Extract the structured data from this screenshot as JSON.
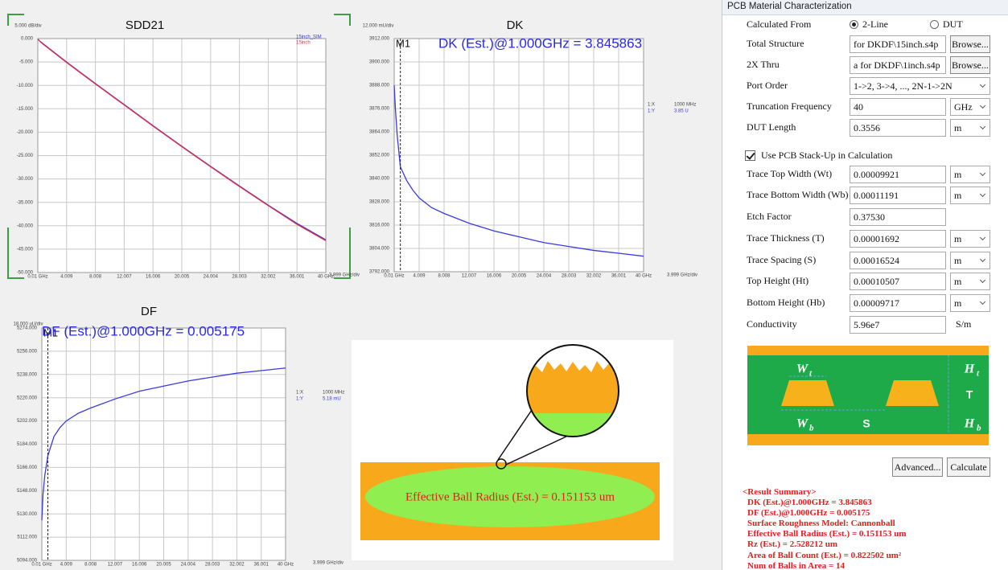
{
  "chart_data": [
    {
      "type": "line",
      "title": "SDD21",
      "y_unit": "5.000 dB/div",
      "x_unit": "3.999 GHz/div",
      "x": [
        0.01,
        0.2,
        0.5,
        1,
        2,
        3,
        4.009,
        6,
        8.008,
        12.007,
        16.006,
        20.005,
        24.004,
        28.003,
        32.002,
        36.001,
        40
      ],
      "xlim": [
        0.01,
        40
      ],
      "xticks": [
        {
          "value": 0.01,
          "label": "0.01 GHz"
        },
        4.009,
        8.008,
        12.007,
        16.006,
        20.005,
        24.004,
        28.003,
        32.002,
        36.001,
        {
          "value": 40,
          "label": "40 GHz"
        }
      ],
      "ylim": [
        -50,
        0
      ],
      "yticks": [
        {
          "value": 0,
          "label": "0.000"
        },
        {
          "value": -5,
          "label": "-5.000"
        },
        {
          "value": -10,
          "label": "-10.000"
        },
        {
          "value": -15,
          "label": "-15.000"
        },
        {
          "value": -20,
          "label": "-20.000"
        },
        {
          "value": -25,
          "label": "-25.000"
        },
        {
          "value": -30,
          "label": "-30.000"
        },
        {
          "value": -35,
          "label": "-35.000"
        },
        {
          "value": -40,
          "label": "-40.000"
        },
        {
          "value": -45,
          "label": "-45.000"
        },
        {
          "value": -50,
          "label": "-50.000"
        }
      ],
      "grid": true,
      "legend": "upper right",
      "series": [
        {
          "name": "15inch_SIM",
          "color": "#3a3ad8",
          "values": [
            -0.1,
            -0.4,
            -0.8,
            -1.4,
            -2.6,
            -3.8,
            -5.0,
            -7.3,
            -9.6,
            -14.1,
            -18.6,
            -23.0,
            -27.3,
            -31.5,
            -35.6,
            -39.5,
            -43.0
          ]
        },
        {
          "name": "15inch",
          "color": "#e0304a",
          "values": [
            -0.1,
            -0.4,
            -0.9,
            -1.5,
            -2.7,
            -3.9,
            -5.1,
            -7.4,
            -9.7,
            -14.2,
            -18.7,
            -23.1,
            -27.4,
            -31.6,
            -35.7,
            -39.7,
            -43.2
          ]
        }
      ]
    },
    {
      "type": "line",
      "title": "DK",
      "y_unit": "12.000 mU/div",
      "x_unit": "3.999 GHz/div",
      "x": [
        0.01,
        0.2,
        0.5,
        1,
        2,
        3,
        4.009,
        6,
        8.008,
        12.007,
        16.006,
        20.005,
        24.004,
        28.003,
        32.002,
        36.001,
        40
      ],
      "xlim": [
        0.01,
        40
      ],
      "xticks": [
        {
          "value": 0.01,
          "label": "0.01 GHz"
        },
        4.009,
        8.008,
        12.007,
        16.006,
        20.005,
        24.004,
        28.003,
        32.002,
        36.001,
        {
          "value": 40,
          "label": "40 GHz"
        }
      ],
      "ylim": [
        3792,
        3912
      ],
      "yticks": [
        {
          "value": 3792,
          "label": "3792.000"
        },
        {
          "value": 3804,
          "label": "3804.000"
        },
        {
          "value": 3816,
          "label": "3816.000"
        },
        {
          "value": 3828,
          "label": "3828.000"
        },
        {
          "value": 3840,
          "label": "3840.000"
        },
        {
          "value": 3852,
          "label": "3852.000"
        },
        {
          "value": 3864,
          "label": "3864.000"
        },
        {
          "value": 3876,
          "label": "3876.000"
        },
        {
          "value": 3888,
          "label": "3888.000"
        },
        {
          "value": 3900,
          "label": "3900.000"
        },
        {
          "value": 3912,
          "label": "3912.000"
        }
      ],
      "grid": true,
      "series": [
        {
          "color": "#3a3ae0",
          "values": [
            3888,
            3876,
            3862,
            3846,
            3839,
            3834,
            3830,
            3825,
            3822,
            3817,
            3813,
            3810,
            3807,
            3805,
            3803,
            3801.5,
            3800
          ]
        }
      ],
      "marker": {
        "label": "M1",
        "x": 1,
        "readout": [
          [
            "1:X",
            "1000 MHz"
          ],
          [
            "1:Y",
            "3.85 U"
          ]
        ]
      },
      "annotation": "DK (Est.)@1.000GHz = 3.845863"
    },
    {
      "type": "line",
      "title": "DF",
      "y_unit": "18.000 uU/div",
      "x_unit": "3.999 GHz/div",
      "x": [
        0.01,
        0.2,
        0.5,
        1,
        2,
        3,
        4.009,
        6,
        8.008,
        12.007,
        16.006,
        20.005,
        24.004,
        28.003,
        32.002,
        36.001,
        40
      ],
      "xlim": [
        0.01,
        40
      ],
      "xticks": [
        {
          "value": 0.01,
          "label": "0.01 GHz"
        },
        4.009,
        8.008,
        12.007,
        16.006,
        20.005,
        24.004,
        28.003,
        32.002,
        36.001,
        {
          "value": 40,
          "label": "40 GHz"
        }
      ],
      "ylim": [
        5094,
        5274
      ],
      "yticks": [
        {
          "value": 5094,
          "label": "5094.000"
        },
        {
          "value": 5112,
          "label": "5112.000"
        },
        {
          "value": 5130,
          "label": "5130.000"
        },
        {
          "value": 5148,
          "label": "5148.000"
        },
        {
          "value": 5166,
          "label": "5166.000"
        },
        {
          "value": 5184,
          "label": "5184.000"
        },
        {
          "value": 5202,
          "label": "5202.000"
        },
        {
          "value": 5220,
          "label": "5220.000"
        },
        {
          "value": 5238,
          "label": "5238.000"
        },
        {
          "value": 5256,
          "label": "5256.000"
        },
        {
          "value": 5274,
          "label": "5274.000"
        }
      ],
      "grid": true,
      "series": [
        {
          "color": "#3a3ae0",
          "values": [
            5125,
            5145,
            5160,
            5175,
            5190,
            5197,
            5202,
            5208,
            5212,
            5219,
            5225,
            5229,
            5233,
            5236,
            5239,
            5241,
            5243
          ]
        }
      ],
      "marker": {
        "label": "M1",
        "x": 1,
        "readout": [
          [
            "1:X",
            "1000 MHz"
          ],
          [
            "1:Y",
            "5.18 mU"
          ]
        ]
      },
      "annotation": "DF (Est.)@1.000GHz = 0.005175"
    }
  ],
  "ball_diagram": {
    "label": "Effective Ball Radius (Est.) = 0.151153 um"
  },
  "panel": {
    "title": "PCB Material Characterization",
    "calculated_from": {
      "label": "Calculated From",
      "options": [
        "2-Line",
        "DUT"
      ],
      "selected": 0
    },
    "fields": [
      {
        "label": "Total Structure",
        "value": "for DKDF\\15inch.s4p",
        "button": "Browse..."
      },
      {
        "label": "2X Thru",
        "value": "a for DKDF\\1inch.s4p",
        "button": "Browse..."
      },
      {
        "label": "Port Order",
        "value": "1->2, 3->4, ..., 2N-1->2N",
        "dropdown": true
      },
      {
        "label": "Truncation Frequency",
        "value": "40",
        "unit": "GHz",
        "unit_dropdown": true
      },
      {
        "label": "DUT Length",
        "value": "0.3556",
        "unit": "m",
        "unit_dropdown": true
      }
    ],
    "checkbox": {
      "label": "Use PCB Stack-Up in Calculation",
      "checked": true
    },
    "stackup_fields": [
      {
        "label": "Trace Top Width (Wt)",
        "value": "0.00009921",
        "unit": "m",
        "unit_dropdown": true
      },
      {
        "label": "Trace Bottom Width (Wb)",
        "value": "0.00011191",
        "unit": "m",
        "unit_dropdown": true
      },
      {
        "label": "Etch Factor",
        "value": "0.37530"
      },
      {
        "label": "Trace Thickness (T)",
        "value": "0.00001692",
        "unit": "m",
        "unit_dropdown": true
      },
      {
        "label": "Trace Spacing (S)",
        "value": "0.00016524",
        "unit": "m",
        "unit_dropdown": true
      },
      {
        "label": "Top Height (Ht)",
        "value": "0.00010507",
        "unit": "m",
        "unit_dropdown": true
      },
      {
        "label": "Bottom Height (Hb)",
        "value": "0.00009717",
        "unit": "m",
        "unit_dropdown": true
      },
      {
        "label": "Conductivity",
        "value": "5.96e7",
        "unit": "S/m"
      }
    ],
    "stackup_labels": [
      {
        "text": "W",
        "sub": "t"
      },
      {
        "text": "H",
        "sub": "t"
      },
      {
        "text": "T"
      },
      {
        "text": "W",
        "sub": "b"
      },
      {
        "text": "S"
      },
      {
        "text": "H",
        "sub": "b"
      }
    ],
    "buttons": [
      "Advanced...",
      "Calculate"
    ],
    "result_summary": {
      "title": "<Result Summary>",
      "lines": [
        "DK (Est.)@1.000GHz = 3.845863",
        "DF (Est.)@1.000GHz = 0.005175",
        "Surface Roughness Model: Cannonball",
        "Effective Ball Radius (Est.) = 0.151153 um",
        "Rz (Est.) = 2.528212 um",
        "Area of Ball Count (Est.) = 0.822502 um²",
        "Num of Balls in Area = 14"
      ]
    }
  }
}
